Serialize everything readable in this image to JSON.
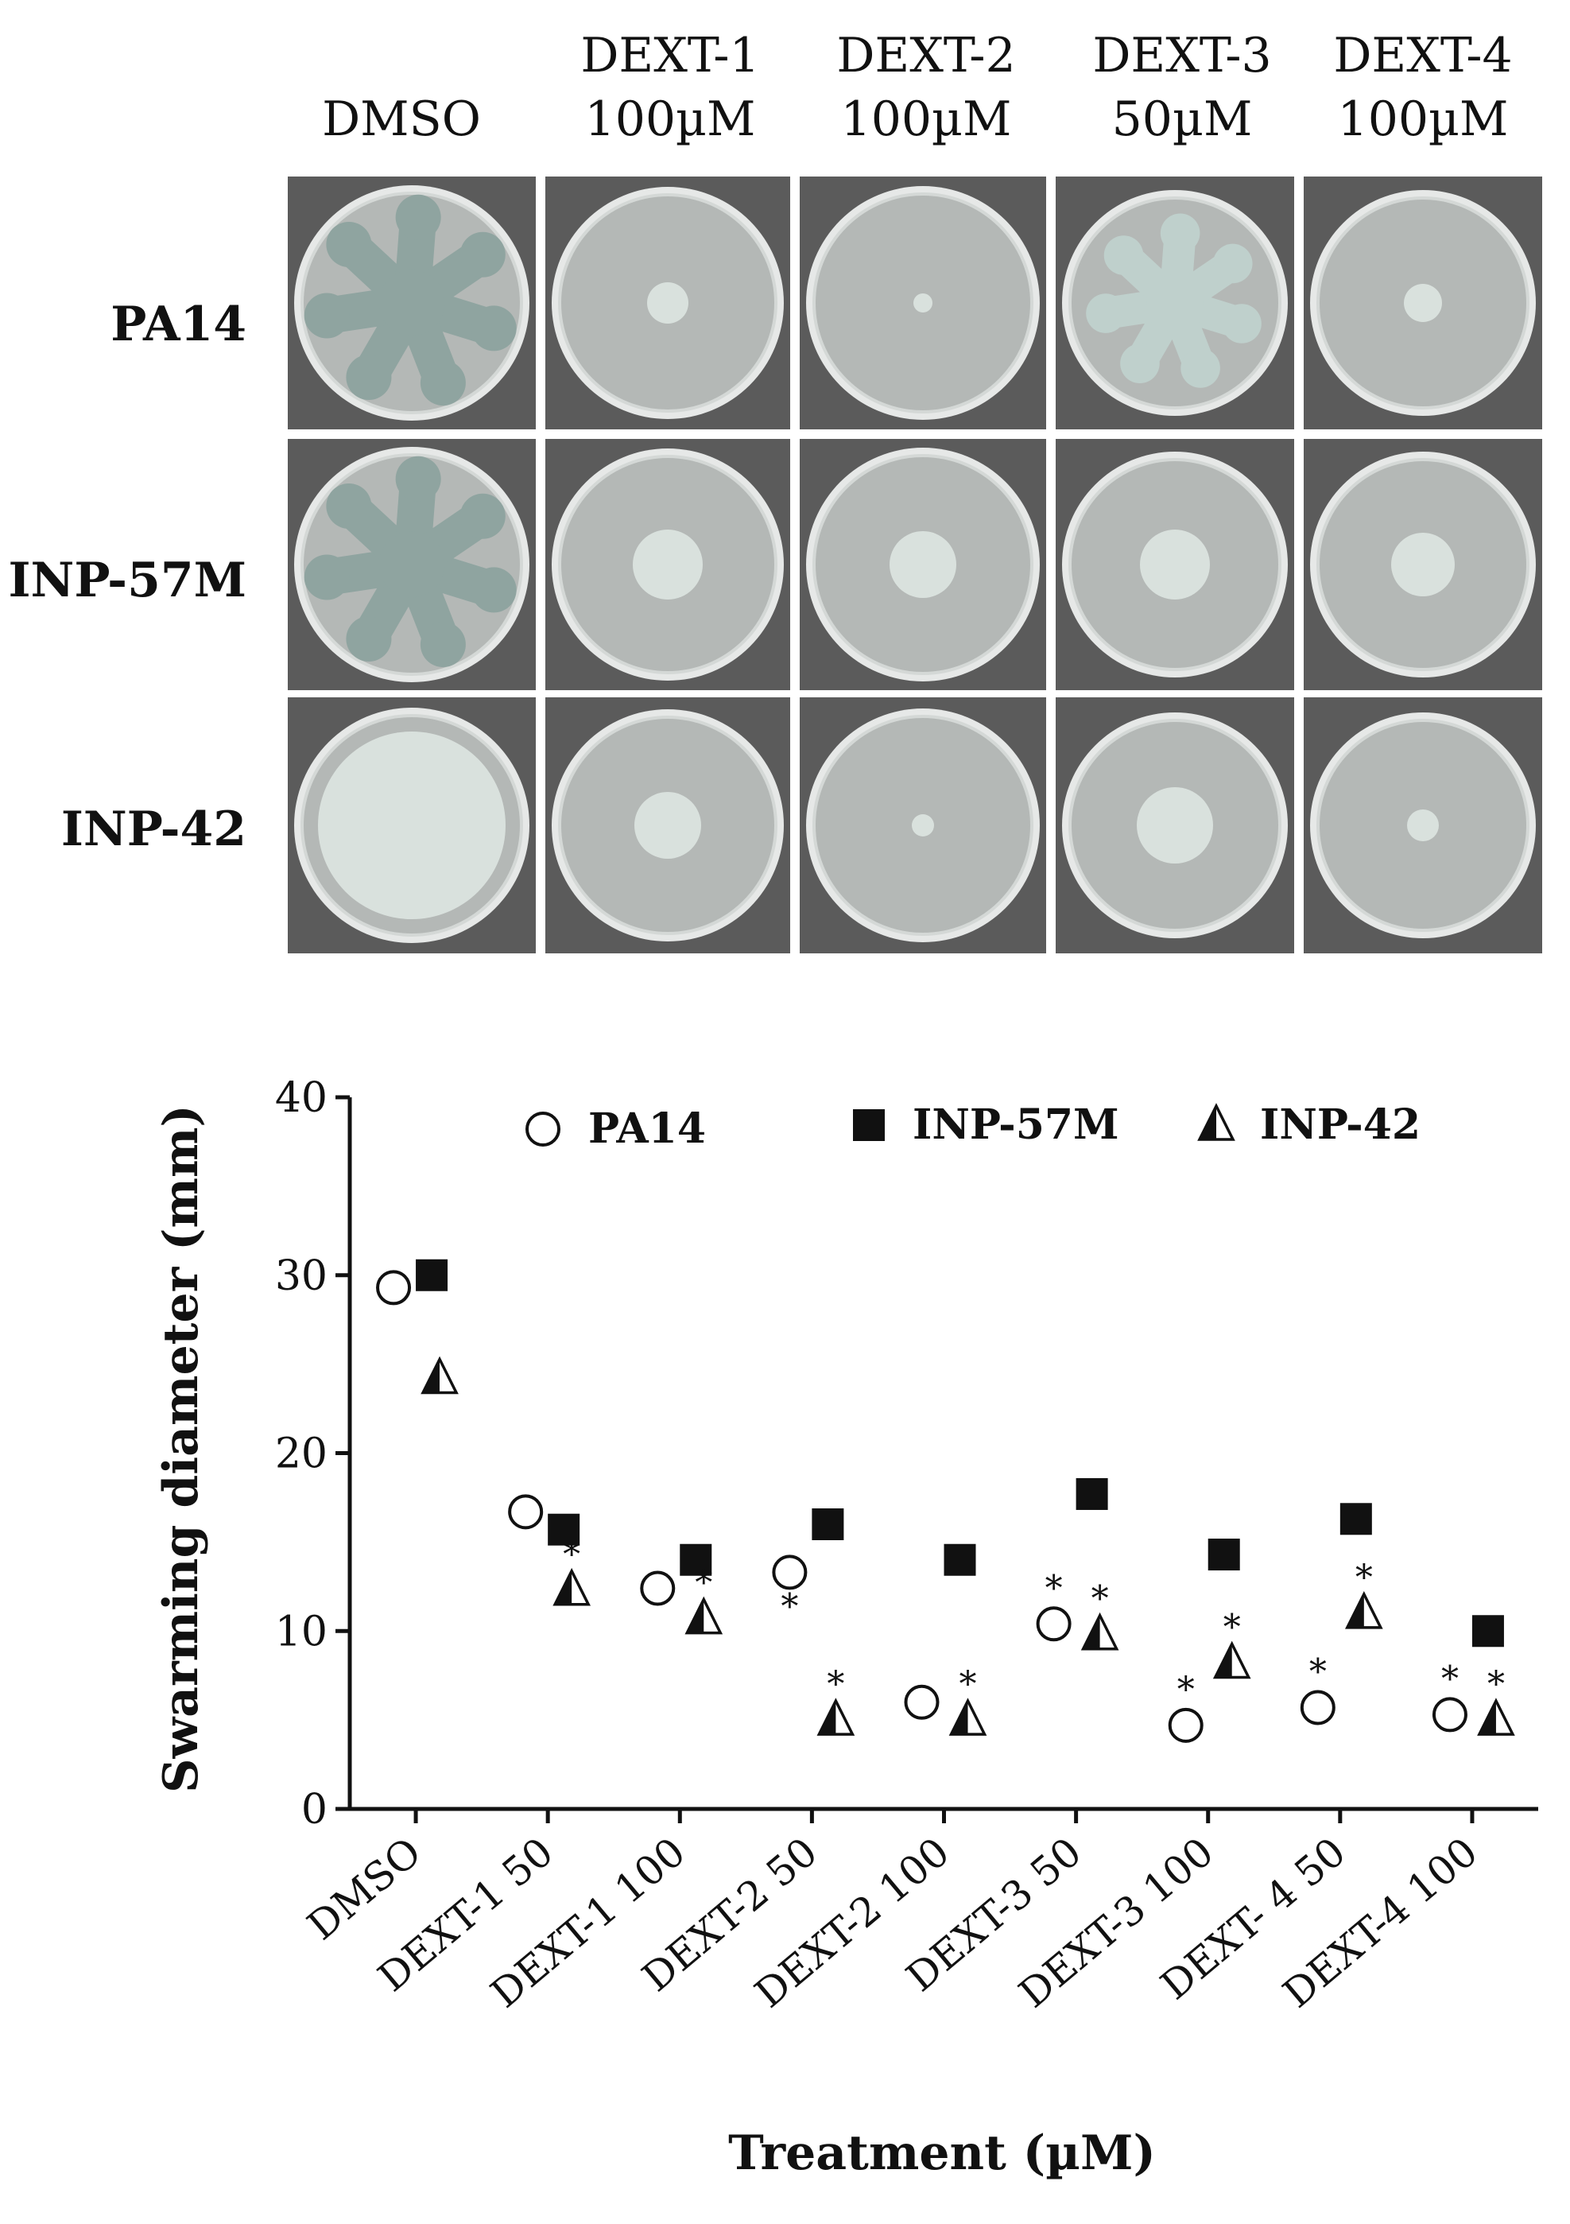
{
  "plate_panel": {
    "column_headers": [
      {
        "line1": "",
        "line2": "DMSO"
      },
      {
        "line1": "DEXT-1",
        "line2": "100µM"
      },
      {
        "line1": "DEXT-2",
        "line2": "100µM"
      },
      {
        "line1": "DEXT-3",
        "line2": "50µM"
      },
      {
        "line1": "DEXT-4",
        "line2": "100µM"
      }
    ],
    "row_labels": [
      "PA14",
      "INP-57M",
      "INP-42"
    ],
    "colors": {
      "frame": "#5b5b5b",
      "agar": "#b4b8b6",
      "swarm": "#d9e1dd",
      "rim": "#e6e8e7"
    }
  },
  "chart_data": {
    "type": "scatter",
    "ylabel": "Swarming diameter (mm)",
    "xlabel": "Treatment (µM)",
    "ylim": [
      0,
      40
    ],
    "yticks": [
      0,
      10,
      20,
      30,
      40
    ],
    "categories": [
      "DMSO",
      "DEXT-1 50",
      "DEXT-1 100",
      "DEXT-2 50",
      "DEXT-2 100",
      "DEXT-3 50",
      "DEXT-3 100",
      "DEXT- 4 50",
      "DEXT-4 100"
    ],
    "legend_position": "top",
    "significance_marker": "*",
    "series": [
      {
        "name": "PA14",
        "marker": "open-circle",
        "values": [
          29.3,
          16.7,
          12.4,
          13.3,
          6.0,
          10.4,
          4.7,
          5.7,
          5.3
        ],
        "significant": [
          false,
          false,
          false,
          true,
          false,
          true,
          true,
          true,
          true
        ]
      },
      {
        "name": "INP-57M",
        "marker": "filled-square",
        "values": [
          30.0,
          15.7,
          14.0,
          16.0,
          14.0,
          17.7,
          14.3,
          16.3,
          10.0
        ],
        "significant": [
          false,
          false,
          false,
          false,
          false,
          false,
          false,
          false,
          false
        ]
      },
      {
        "name": "INP-42",
        "marker": "half-filled-triangle",
        "values": [
          24.2,
          12.3,
          10.7,
          5.0,
          5.0,
          9.8,
          8.2,
          11.0,
          5.0
        ],
        "significant": [
          false,
          true,
          true,
          true,
          true,
          true,
          true,
          true,
          true
        ]
      }
    ]
  }
}
